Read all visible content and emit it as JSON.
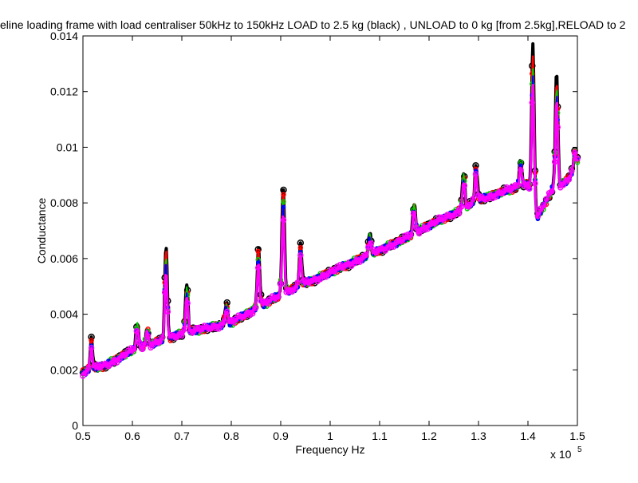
{
  "chart_data": {
    "type": "line",
    "title": "eline loading frame with load centraliser 50kHz to 150kHz LOAD to 2.5 kg (black) , UNLOAD to 0 kg [from 2.5kg],RELOAD to 2",
    "xlabel": "Frequency Hz",
    "ylabel": "Conductance",
    "x_multiplier_label": "x 10",
    "x_multiplier_exponent": "5",
    "xlim": [
      0.5,
      1.5
    ],
    "ylim": [
      0,
      0.014
    ],
    "xticks": [
      0.5,
      0.6,
      0.7,
      0.8,
      0.9,
      1.0,
      1.1,
      1.2,
      1.3,
      1.4,
      1.5
    ],
    "xtick_labels": [
      "0.5",
      "0.6",
      "0.7",
      "0.8",
      "0.9",
      "1",
      "1.1",
      "1.2",
      "1.3",
      "1.4",
      "1.5"
    ],
    "yticks": [
      0,
      0.002,
      0.004,
      0.006,
      0.008,
      0.01,
      0.012,
      0.014
    ],
    "ytick_labels": [
      "0",
      "0.002",
      "0.004",
      "0.006",
      "0.008",
      "0.01",
      "0.012",
      "0.014"
    ],
    "grid": false,
    "legend": "none",
    "baseline": {
      "x": [
        0.5,
        0.55,
        0.6,
        0.65,
        0.7,
        0.75,
        0.8,
        0.85,
        0.9,
        0.95,
        1.0,
        1.05,
        1.1,
        1.15,
        1.2,
        1.25,
        1.3,
        1.35,
        1.4,
        1.42,
        1.45,
        1.48,
        1.5
      ],
      "y": [
        0.0019,
        0.0022,
        0.0027,
        0.003,
        0.0033,
        0.0035,
        0.0037,
        0.0042,
        0.0047,
        0.0051,
        0.0055,
        0.0059,
        0.0063,
        0.0067,
        0.0072,
        0.0076,
        0.0081,
        0.0084,
        0.0087,
        0.0075,
        0.0085,
        0.0088,
        0.0095
      ]
    },
    "peaks": [
      {
        "x": 0.517,
        "y": 0.0031
      },
      {
        "x": 0.61,
        "y": 0.0037
      },
      {
        "x": 0.63,
        "y": 0.0035
      },
      {
        "x": 0.668,
        "y": 0.0065
      },
      {
        "x": 0.71,
        "y": 0.0051
      },
      {
        "x": 0.79,
        "y": 0.0044
      },
      {
        "x": 0.855,
        "y": 0.0064
      },
      {
        "x": 0.905,
        "y": 0.0087
      },
      {
        "x": 0.94,
        "y": 0.0065
      },
      {
        "x": 1.08,
        "y": 0.0069
      },
      {
        "x": 1.17,
        "y": 0.008
      },
      {
        "x": 1.27,
        "y": 0.0091
      },
      {
        "x": 1.295,
        "y": 0.0094
      },
      {
        "x": 1.385,
        "y": 0.0095
      },
      {
        "x": 1.41,
        "y": 0.0137
      },
      {
        "x": 1.458,
        "y": 0.0127
      },
      {
        "x": 1.495,
        "y": 0.0099
      }
    ],
    "series": [
      {
        "name": "",
        "color": "#000000",
        "width": 4,
        "scale": 1.0,
        "marker": 7
      },
      {
        "name": "",
        "color": "#ff0000",
        "width": 2.5,
        "scale": 0.92,
        "marker": 5
      },
      {
        "name": "",
        "color": "#00cc00",
        "width": 2,
        "scale": 0.86,
        "marker": 5
      },
      {
        "name": "",
        "color": "#0000ff",
        "width": 2,
        "scale": 0.8,
        "marker": 4
      },
      {
        "name": "",
        "color": "#ff00ff",
        "width": 3,
        "scale": 0.72,
        "marker": 6
      }
    ]
  }
}
